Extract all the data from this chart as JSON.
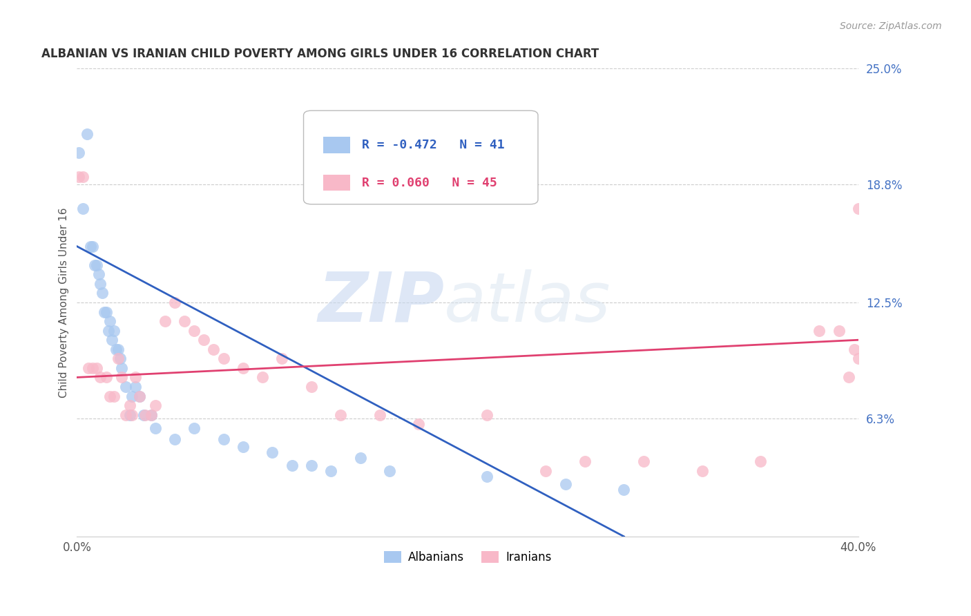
{
  "title": "ALBANIAN VS IRANIAN CHILD POVERTY AMONG GIRLS UNDER 16 CORRELATION CHART",
  "source": "Source: ZipAtlas.com",
  "ylabel": "Child Poverty Among Girls Under 16",
  "xlim": [
    0.0,
    0.4
  ],
  "ylim": [
    0.0,
    0.25
  ],
  "ytick_labels_right": [
    "25.0%",
    "18.8%",
    "12.5%",
    "6.3%"
  ],
  "ytick_vals_right": [
    0.25,
    0.188,
    0.125,
    0.063
  ],
  "albanians_R": -0.472,
  "albanians_N": 41,
  "iranians_R": 0.06,
  "iranians_N": 45,
  "albanian_color": "#A8C8F0",
  "iranian_color": "#F8B8C8",
  "albanian_line_color": "#3060C0",
  "iranian_line_color": "#E04070",
  "watermark_zip": "ZIP",
  "watermark_atlas": "atlas",
  "albanian_x": [
    0.001,
    0.003,
    0.005,
    0.007,
    0.008,
    0.009,
    0.01,
    0.011,
    0.012,
    0.013,
    0.014,
    0.015,
    0.016,
    0.017,
    0.018,
    0.019,
    0.02,
    0.021,
    0.022,
    0.023,
    0.025,
    0.027,
    0.028,
    0.03,
    0.032,
    0.034,
    0.038,
    0.04,
    0.05,
    0.06,
    0.075,
    0.085,
    0.1,
    0.11,
    0.12,
    0.13,
    0.145,
    0.16,
    0.21,
    0.25,
    0.28
  ],
  "albanian_y": [
    0.205,
    0.175,
    0.215,
    0.155,
    0.155,
    0.145,
    0.145,
    0.14,
    0.135,
    0.13,
    0.12,
    0.12,
    0.11,
    0.115,
    0.105,
    0.11,
    0.1,
    0.1,
    0.095,
    0.09,
    0.08,
    0.065,
    0.075,
    0.08,
    0.075,
    0.065,
    0.065,
    0.058,
    0.052,
    0.058,
    0.052,
    0.048,
    0.045,
    0.038,
    0.038,
    0.035,
    0.042,
    0.035,
    0.032,
    0.028,
    0.025
  ],
  "iranian_x": [
    0.001,
    0.003,
    0.006,
    0.008,
    0.01,
    0.012,
    0.015,
    0.017,
    0.019,
    0.021,
    0.023,
    0.025,
    0.027,
    0.028,
    0.03,
    0.032,
    0.035,
    0.038,
    0.04,
    0.045,
    0.05,
    0.055,
    0.06,
    0.065,
    0.07,
    0.075,
    0.085,
    0.095,
    0.105,
    0.12,
    0.135,
    0.155,
    0.175,
    0.21,
    0.24,
    0.26,
    0.29,
    0.32,
    0.35,
    0.38,
    0.39,
    0.395,
    0.398,
    0.4,
    0.4
  ],
  "iranian_y": [
    0.192,
    0.192,
    0.09,
    0.09,
    0.09,
    0.085,
    0.085,
    0.075,
    0.075,
    0.095,
    0.085,
    0.065,
    0.07,
    0.065,
    0.085,
    0.075,
    0.065,
    0.065,
    0.07,
    0.115,
    0.125,
    0.115,
    0.11,
    0.105,
    0.1,
    0.095,
    0.09,
    0.085,
    0.095,
    0.08,
    0.065,
    0.065,
    0.06,
    0.065,
    0.035,
    0.04,
    0.04,
    0.035,
    0.04,
    0.11,
    0.11,
    0.085,
    0.1,
    0.095,
    0.175
  ],
  "alb_line_x0": 0.0,
  "alb_line_y0": 0.155,
  "alb_line_x1": 0.28,
  "alb_line_y1": 0.0,
  "iran_line_x0": 0.0,
  "iran_line_y0": 0.085,
  "iran_line_x1": 0.4,
  "iran_line_y1": 0.105
}
